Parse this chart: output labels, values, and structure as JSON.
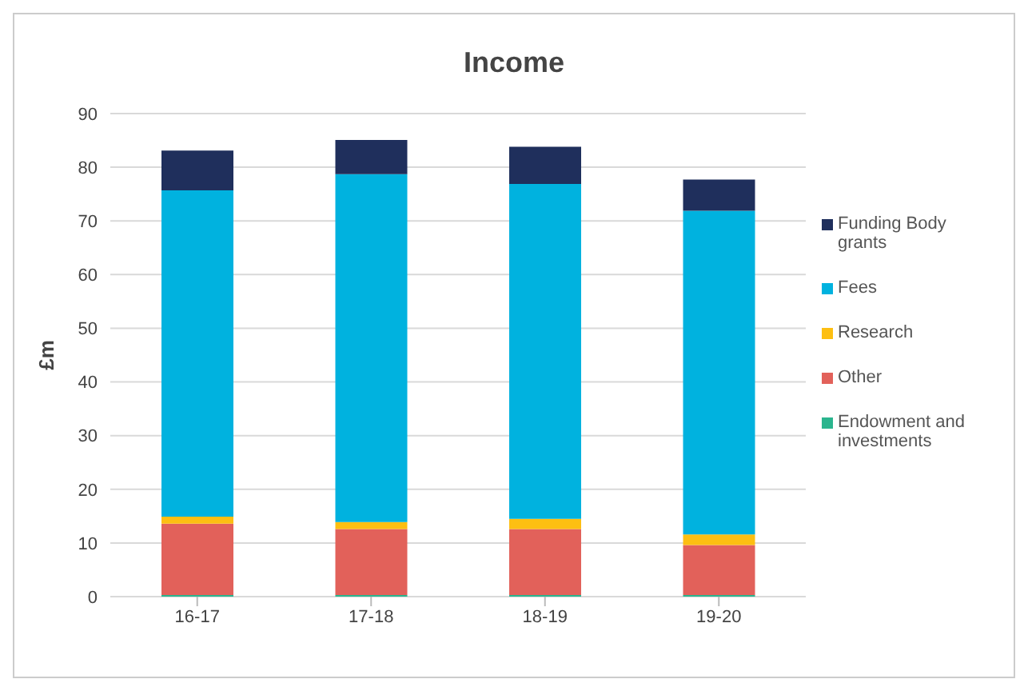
{
  "chart_data": {
    "type": "bar",
    "title": "Income",
    "ylabel": "£m",
    "categories": [
      "16-17",
      "17-18",
      "18-19",
      "19-20"
    ],
    "stacked": true,
    "series": [
      {
        "name": "Endowment and investments",
        "color": "#2bb58e",
        "values": [
          0.3,
          0.3,
          0.3,
          0.3
        ]
      },
      {
        "name": "Other",
        "color": "#e2615a",
        "values": [
          13.3,
          12.3,
          12.3,
          9.3
        ]
      },
      {
        "name": "Research",
        "color": "#fdbf12",
        "values": [
          1.3,
          1.3,
          1.9,
          2.0
        ]
      },
      {
        "name": "Fees",
        "color": "#00b2df",
        "values": [
          60.8,
          64.8,
          62.4,
          60.3
        ]
      },
      {
        "name": "Funding Body grants",
        "color": "#1f2f5c",
        "values": [
          7.4,
          6.4,
          6.9,
          5.8
        ]
      }
    ],
    "ylim": [
      0,
      90
    ],
    "yticks": [
      0,
      10,
      20,
      30,
      40,
      50,
      60,
      70,
      80,
      90
    ],
    "grid": "y",
    "legend": "right"
  }
}
